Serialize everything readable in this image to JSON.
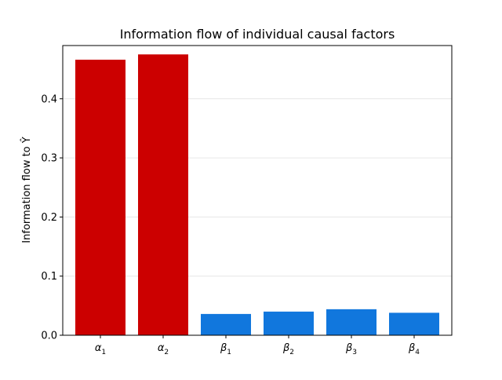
{
  "chart_data": {
    "type": "bar",
    "title": "Information flow of individual causal factors",
    "xlabel": "",
    "ylabel": "Information flow to Ŷ",
    "categories": [
      "α1",
      "α2",
      "β1",
      "β2",
      "β3",
      "β4"
    ],
    "category_labels": [
      {
        "symbol": "α",
        "sub": "1"
      },
      {
        "symbol": "α",
        "sub": "2"
      },
      {
        "symbol": "β",
        "sub": "1"
      },
      {
        "symbol": "β",
        "sub": "2"
      },
      {
        "symbol": "β",
        "sub": "3"
      },
      {
        "symbol": "β",
        "sub": "4"
      }
    ],
    "values": [
      0.466,
      0.475,
      0.036,
      0.04,
      0.044,
      0.038
    ],
    "colors": [
      "#cc0000",
      "#cc0000",
      "#1177dd",
      "#1177dd",
      "#1177dd",
      "#1177dd"
    ],
    "ylim": [
      0,
      0.49
    ],
    "yticks": [
      0.0,
      0.1,
      0.2,
      0.3,
      0.4
    ],
    "ytick_labels": [
      "0.0",
      "0.1",
      "0.2",
      "0.3",
      "0.4"
    ],
    "grid": "horizontal",
    "legend": "none"
  }
}
